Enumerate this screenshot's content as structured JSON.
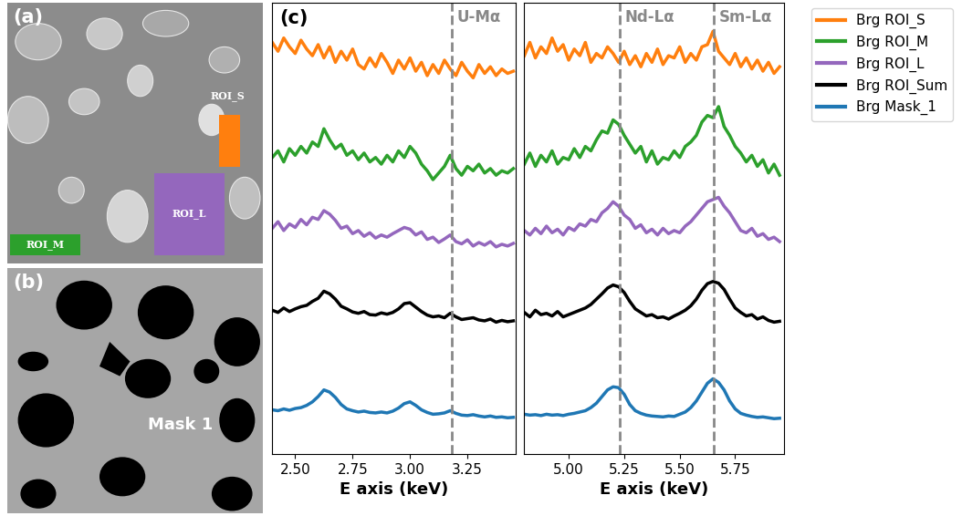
{
  "images": [
    {
      "label": "(a)",
      "regions": [
        {
          "name": "ROI_S",
          "color": "#ff7f0e"
        },
        {
          "name": "ROI_L",
          "color": "#9467bd"
        },
        {
          "name": "ROI_M",
          "color": "#2ca02c"
        }
      ]
    },
    {
      "label": "(b)",
      "mask": "Mask 1"
    }
  ],
  "chart_data": [
    {
      "type": "line",
      "title": "(c)",
      "xlabel": "E axis (keV)",
      "xlim": [
        2.4,
        3.46
      ],
      "ylim": [
        0,
        10.2
      ],
      "xticks": [
        {
          "value": 2.5,
          "label": "2.50"
        },
        {
          "value": 2.75,
          "label": "2.75"
        },
        {
          "value": 3.0,
          "label": "3.00"
        },
        {
          "value": 3.25,
          "label": "3.25"
        }
      ],
      "yticks": [],
      "tick_labels": "x",
      "legend": "upper right",
      "annotations": [
        {
          "text": "U-Mα",
          "x": 3.18
        }
      ],
      "x": [
        2.4,
        2.425,
        2.45,
        2.475,
        2.5,
        2.525,
        2.55,
        2.575,
        2.6,
        2.625,
        2.65,
        2.675,
        2.7,
        2.725,
        2.75,
        2.775,
        2.8,
        2.825,
        2.85,
        2.875,
        2.9,
        2.925,
        2.95,
        2.975,
        3.0,
        3.025,
        3.05,
        3.075,
        3.1,
        3.125,
        3.15,
        3.175,
        3.2,
        3.225,
        3.25,
        3.275,
        3.3,
        3.325,
        3.35,
        3.375,
        3.4,
        3.425,
        3.45
      ],
      "series": [
        {
          "name": "Brg ROI_S",
          "color": "#ff7f0e",
          "values": [
            9.3,
            9.1,
            9.4,
            9.2,
            9.05,
            9.35,
            9.15,
            9.0,
            9.25,
            8.95,
            9.2,
            8.85,
            9.1,
            8.9,
            9.15,
            8.8,
            8.7,
            8.95,
            8.75,
            9.05,
            8.85,
            8.6,
            8.9,
            8.7,
            8.95,
            8.65,
            8.85,
            8.55,
            8.8,
            8.6,
            8.9,
            8.7,
            8.55,
            8.85,
            8.65,
            8.5,
            8.8,
            8.6,
            8.75,
            8.55,
            8.7,
            8.6,
            8.65
          ]
        },
        {
          "name": "Brg ROI_M",
          "color": "#2ca02c",
          "values": [
            6.7,
            6.85,
            6.6,
            6.9,
            6.75,
            6.95,
            6.8,
            7.05,
            6.95,
            7.35,
            7.1,
            6.9,
            7.0,
            6.75,
            6.85,
            6.65,
            6.8,
            6.6,
            6.7,
            6.55,
            6.75,
            6.6,
            6.85,
            6.7,
            6.95,
            6.8,
            6.55,
            6.4,
            6.2,
            6.35,
            6.5,
            6.75,
            6.45,
            6.3,
            6.5,
            6.4,
            6.55,
            6.35,
            6.45,
            6.3,
            6.4,
            6.35,
            6.45
          ]
        },
        {
          "name": "Brg ROI_L",
          "color": "#9467bd",
          "values": [
            5.1,
            5.25,
            5.05,
            5.2,
            5.12,
            5.3,
            5.18,
            5.35,
            5.3,
            5.5,
            5.42,
            5.28,
            5.1,
            5.15,
            4.98,
            5.05,
            4.92,
            5.0,
            4.88,
            4.95,
            4.9,
            4.98,
            5.05,
            5.12,
            5.08,
            4.95,
            5.02,
            4.85,
            4.9,
            4.78,
            4.86,
            4.95,
            4.8,
            4.75,
            4.84,
            4.7,
            4.78,
            4.72,
            4.8,
            4.68,
            4.74,
            4.7,
            4.76
          ]
        },
        {
          "name": "Brg ROI_Sum",
          "color": "#000000",
          "values": [
            3.25,
            3.2,
            3.3,
            3.22,
            3.28,
            3.33,
            3.36,
            3.45,
            3.52,
            3.68,
            3.62,
            3.5,
            3.34,
            3.28,
            3.21,
            3.18,
            3.22,
            3.15,
            3.14,
            3.19,
            3.16,
            3.2,
            3.28,
            3.4,
            3.42,
            3.32,
            3.22,
            3.14,
            3.1,
            3.12,
            3.08,
            3.18,
            3.1,
            3.04,
            3.06,
            3.08,
            3.03,
            3.01,
            3.05,
            2.98,
            3.02,
            2.99,
            3.01
          ]
        },
        {
          "name": "Brg Mask_1",
          "color": "#1f77b4",
          "values": [
            1.0,
            0.98,
            1.02,
            0.99,
            1.03,
            1.05,
            1.1,
            1.18,
            1.3,
            1.45,
            1.4,
            1.28,
            1.12,
            1.02,
            0.98,
            0.95,
            0.97,
            0.94,
            0.93,
            0.95,
            0.93,
            0.97,
            1.04,
            1.14,
            1.18,
            1.1,
            1.0,
            0.94,
            0.9,
            0.91,
            0.93,
            0.98,
            0.92,
            0.88,
            0.87,
            0.89,
            0.86,
            0.84,
            0.86,
            0.83,
            0.84,
            0.82,
            0.83
          ]
        }
      ]
    },
    {
      "type": "line",
      "xlabel": "E axis (keV)",
      "xlim": [
        4.8,
        5.97
      ],
      "ylim": [
        0,
        10.2
      ],
      "xticks": [
        {
          "value": 5.0,
          "label": "5.00"
        },
        {
          "value": 5.25,
          "label": "5.25"
        },
        {
          "value": 5.5,
          "label": "5.50"
        },
        {
          "value": 5.75,
          "label": "5.75"
        }
      ],
      "yticks": [],
      "tick_labels": "x",
      "annotations": [
        {
          "text": "Nd-Lα",
          "x": 5.23
        },
        {
          "text": "Sm-Lα",
          "x": 5.655
        }
      ],
      "x": [
        4.8,
        4.825,
        4.85,
        4.875,
        4.9,
        4.925,
        4.95,
        4.975,
        5.0,
        5.025,
        5.05,
        5.075,
        5.1,
        5.125,
        5.15,
        5.175,
        5.2,
        5.225,
        5.25,
        5.275,
        5.3,
        5.325,
        5.35,
        5.375,
        5.4,
        5.425,
        5.45,
        5.475,
        5.5,
        5.525,
        5.55,
        5.575,
        5.6,
        5.625,
        5.65,
        5.675,
        5.7,
        5.725,
        5.75,
        5.775,
        5.8,
        5.825,
        5.85,
        5.875,
        5.9,
        5.925,
        5.95
      ],
      "series": [
        {
          "name": "Brg ROI_S",
          "color": "#ff7f0e",
          "values": [
            9.0,
            9.3,
            8.95,
            9.2,
            9.05,
            9.4,
            9.1,
            9.25,
            8.9,
            9.15,
            9.0,
            9.3,
            8.85,
            9.05,
            8.95,
            9.2,
            9.05,
            8.85,
            9.1,
            8.8,
            9.0,
            8.75,
            9.05,
            8.85,
            9.15,
            8.8,
            9.0,
            8.95,
            9.2,
            8.85,
            9.05,
            8.9,
            9.2,
            9.25,
            9.55,
            9.1,
            8.95,
            8.8,
            9.05,
            8.75,
            8.95,
            8.7,
            8.9,
            8.65,
            8.85,
            8.6,
            8.75
          ]
        },
        {
          "name": "Brg ROI_M",
          "color": "#2ca02c",
          "values": [
            6.55,
            6.8,
            6.5,
            6.75,
            6.6,
            6.85,
            6.55,
            6.7,
            6.65,
            6.9,
            6.7,
            6.95,
            6.85,
            7.1,
            7.3,
            7.25,
            7.55,
            7.45,
            7.2,
            7.0,
            6.8,
            6.95,
            6.6,
            6.85,
            6.55,
            6.7,
            6.65,
            6.85,
            6.7,
            6.95,
            7.05,
            7.2,
            7.5,
            7.65,
            7.6,
            7.85,
            7.4,
            7.2,
            6.95,
            6.8,
            6.6,
            6.75,
            6.5,
            6.65,
            6.35,
            6.55,
            6.3
          ]
        },
        {
          "name": "Brg ROI_L",
          "color": "#9467bd",
          "values": [
            5.05,
            4.95,
            5.1,
            4.98,
            5.15,
            5.0,
            5.08,
            4.95,
            5.12,
            5.05,
            5.2,
            5.15,
            5.3,
            5.25,
            5.45,
            5.55,
            5.7,
            5.6,
            5.4,
            5.3,
            5.1,
            5.18,
            5.0,
            5.08,
            4.95,
            5.1,
            4.98,
            5.05,
            5.0,
            5.15,
            5.25,
            5.4,
            5.55,
            5.7,
            5.75,
            5.8,
            5.6,
            5.45,
            5.25,
            5.05,
            5.0,
            5.1,
            4.92,
            4.98,
            4.85,
            4.9,
            4.8
          ]
        },
        {
          "name": "Brg ROI_Sum",
          "color": "#000000",
          "values": [
            3.2,
            3.1,
            3.25,
            3.15,
            3.18,
            3.12,
            3.22,
            3.1,
            3.15,
            3.2,
            3.25,
            3.3,
            3.38,
            3.5,
            3.62,
            3.75,
            3.82,
            3.78,
            3.65,
            3.45,
            3.28,
            3.2,
            3.12,
            3.15,
            3.08,
            3.1,
            3.05,
            3.12,
            3.18,
            3.25,
            3.35,
            3.5,
            3.7,
            3.85,
            3.9,
            3.86,
            3.72,
            3.5,
            3.3,
            3.2,
            3.12,
            3.15,
            3.05,
            3.1,
            3.02,
            2.98,
            3.0
          ]
        },
        {
          "name": "Brg Mask_1",
          "color": "#1f77b4",
          "values": [
            0.9,
            0.88,
            0.89,
            0.87,
            0.9,
            0.88,
            0.89,
            0.87,
            0.9,
            0.92,
            0.95,
            0.98,
            1.05,
            1.15,
            1.3,
            1.45,
            1.52,
            1.5,
            1.35,
            1.12,
            0.98,
            0.92,
            0.88,
            0.86,
            0.85,
            0.84,
            0.86,
            0.85,
            0.9,
            0.95,
            1.05,
            1.2,
            1.4,
            1.6,
            1.7,
            1.62,
            1.45,
            1.2,
            1.02,
            0.92,
            0.88,
            0.85,
            0.83,
            0.84,
            0.82,
            0.8,
            0.81
          ]
        }
      ]
    }
  ]
}
